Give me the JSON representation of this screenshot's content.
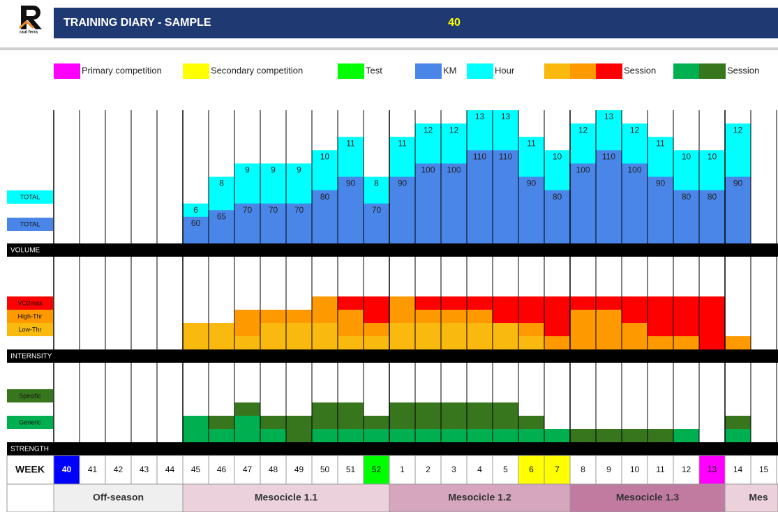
{
  "header": {
    "title": "TRAINING DIARY - SAMPLE",
    "current_week": 40,
    "logo_text": "raul ferra"
  },
  "legend": [
    {
      "label": "Primary competition",
      "colors": [
        "#ff00ff"
      ]
    },
    {
      "label": "Secondary competition",
      "colors": [
        "#ffff00"
      ]
    },
    {
      "label": "Test",
      "colors": [
        "#00ff00"
      ]
    },
    {
      "label": "KM",
      "colors": [
        "#4a86e8"
      ]
    },
    {
      "label": "Hour",
      "colors": [
        "#00ffff"
      ]
    },
    {
      "label": "Session",
      "colors": [
        "#f9b90f",
        "#ff9900",
        "#ff0000"
      ]
    },
    {
      "label": "Session",
      "colors": [
        "#00b050",
        "#38761d"
      ]
    }
  ],
  "chart_data": [
    {
      "type": "bar",
      "title": "VOLUME",
      "ylim": [
        40,
        140
      ],
      "y2lim": [
        3,
        13
      ],
      "series": [
        {
          "name": "TOTAL",
          "color": "#00ffff",
          "axis": "y2",
          "values": [
            null,
            null,
            null,
            null,
            null,
            6,
            8,
            9,
            9,
            9,
            10,
            11,
            8,
            11,
            12,
            12,
            13,
            13,
            11,
            10,
            12,
            13,
            12,
            11,
            10,
            10,
            12,
            null
          ]
        },
        {
          "name": "TOTAL",
          "color": "#4a86e8",
          "values": [
            null,
            null,
            null,
            null,
            null,
            60,
            65,
            70,
            70,
            70,
            80,
            90,
            70,
            90,
            100,
            100,
            110,
            110,
            90,
            80,
            100,
            110,
            100,
            90,
            80,
            80,
            90,
            null
          ]
        }
      ]
    },
    {
      "type": "stacked-bar",
      "title": "INTERNSITY",
      "ylim": [
        0,
        7
      ],
      "series": [
        {
          "name": "Low-Thr",
          "color": "#f9b90f",
          "values": [
            null,
            null,
            null,
            null,
            null,
            2,
            2,
            1,
            2,
            2,
            2,
            1,
            1,
            2,
            2,
            2,
            2,
            2,
            1,
            0,
            0,
            0,
            0,
            0,
            0,
            0,
            0,
            null
          ]
        },
        {
          "name": "High-Thr",
          "color": "#ff9900",
          "values": [
            null,
            null,
            null,
            null,
            null,
            0,
            0,
            2,
            1,
            1,
            2,
            2,
            1,
            2,
            1,
            1,
            1,
            0,
            1,
            1,
            3,
            3,
            2,
            1,
            1,
            0,
            1,
            null
          ]
        },
        {
          "name": "VO2max",
          "color": "#ff0000",
          "values": [
            null,
            null,
            null,
            null,
            null,
            0,
            0,
            0,
            0,
            0,
            0,
            1,
            2,
            0,
            1,
            1,
            1,
            2,
            2,
            3,
            1,
            1,
            2,
            3,
            3,
            4,
            0,
            null
          ]
        }
      ]
    },
    {
      "type": "stacked-bar",
      "title": "STRENGTH",
      "ylim": [
        0,
        6
      ],
      "series": [
        {
          "name": "Generic",
          "color": "#00b050",
          "values": [
            null,
            null,
            null,
            null,
            null,
            2,
            1,
            2,
            1,
            0,
            1,
            1,
            1,
            1,
            1,
            1,
            1,
            1,
            1,
            1,
            0,
            0,
            0,
            0,
            1,
            0,
            1,
            null
          ]
        },
        {
          "name": "Specific",
          "color": "#38761d",
          "values": [
            null,
            null,
            null,
            null,
            null,
            0,
            1,
            1,
            1,
            2,
            2,
            2,
            1,
            2,
            2,
            2,
            2,
            2,
            1,
            0,
            1,
            1,
            1,
            1,
            0,
            0,
            1,
            null
          ]
        }
      ]
    }
  ],
  "weeks": {
    "label": "WEEK",
    "values": [
      40,
      41,
      42,
      43,
      44,
      45,
      46,
      47,
      48,
      49,
      50,
      51,
      52,
      1,
      2,
      3,
      4,
      5,
      6,
      7,
      8,
      9,
      10,
      11,
      12,
      13,
      14,
      15
    ],
    "colors": [
      "#0000ff",
      null,
      null,
      null,
      null,
      null,
      null,
      null,
      null,
      null,
      null,
      null,
      "#00ff00",
      null,
      null,
      null,
      null,
      null,
      "#ffff00",
      "#ffff00",
      null,
      null,
      null,
      null,
      null,
      "#ff00ff",
      null,
      null
    ]
  },
  "phases": [
    {
      "label": "Off-season",
      "color": "#efefef"
    },
    {
      "label": "Mesocicle 1.1",
      "color": "#ead1dc"
    },
    {
      "label": "Mesocicle 1.2",
      "color": "#d5a6bd"
    },
    {
      "label": "Mesocicle 1.3",
      "color": "#c27ba0"
    },
    {
      "label": "Mes",
      "color": "#ead1dc"
    }
  ]
}
